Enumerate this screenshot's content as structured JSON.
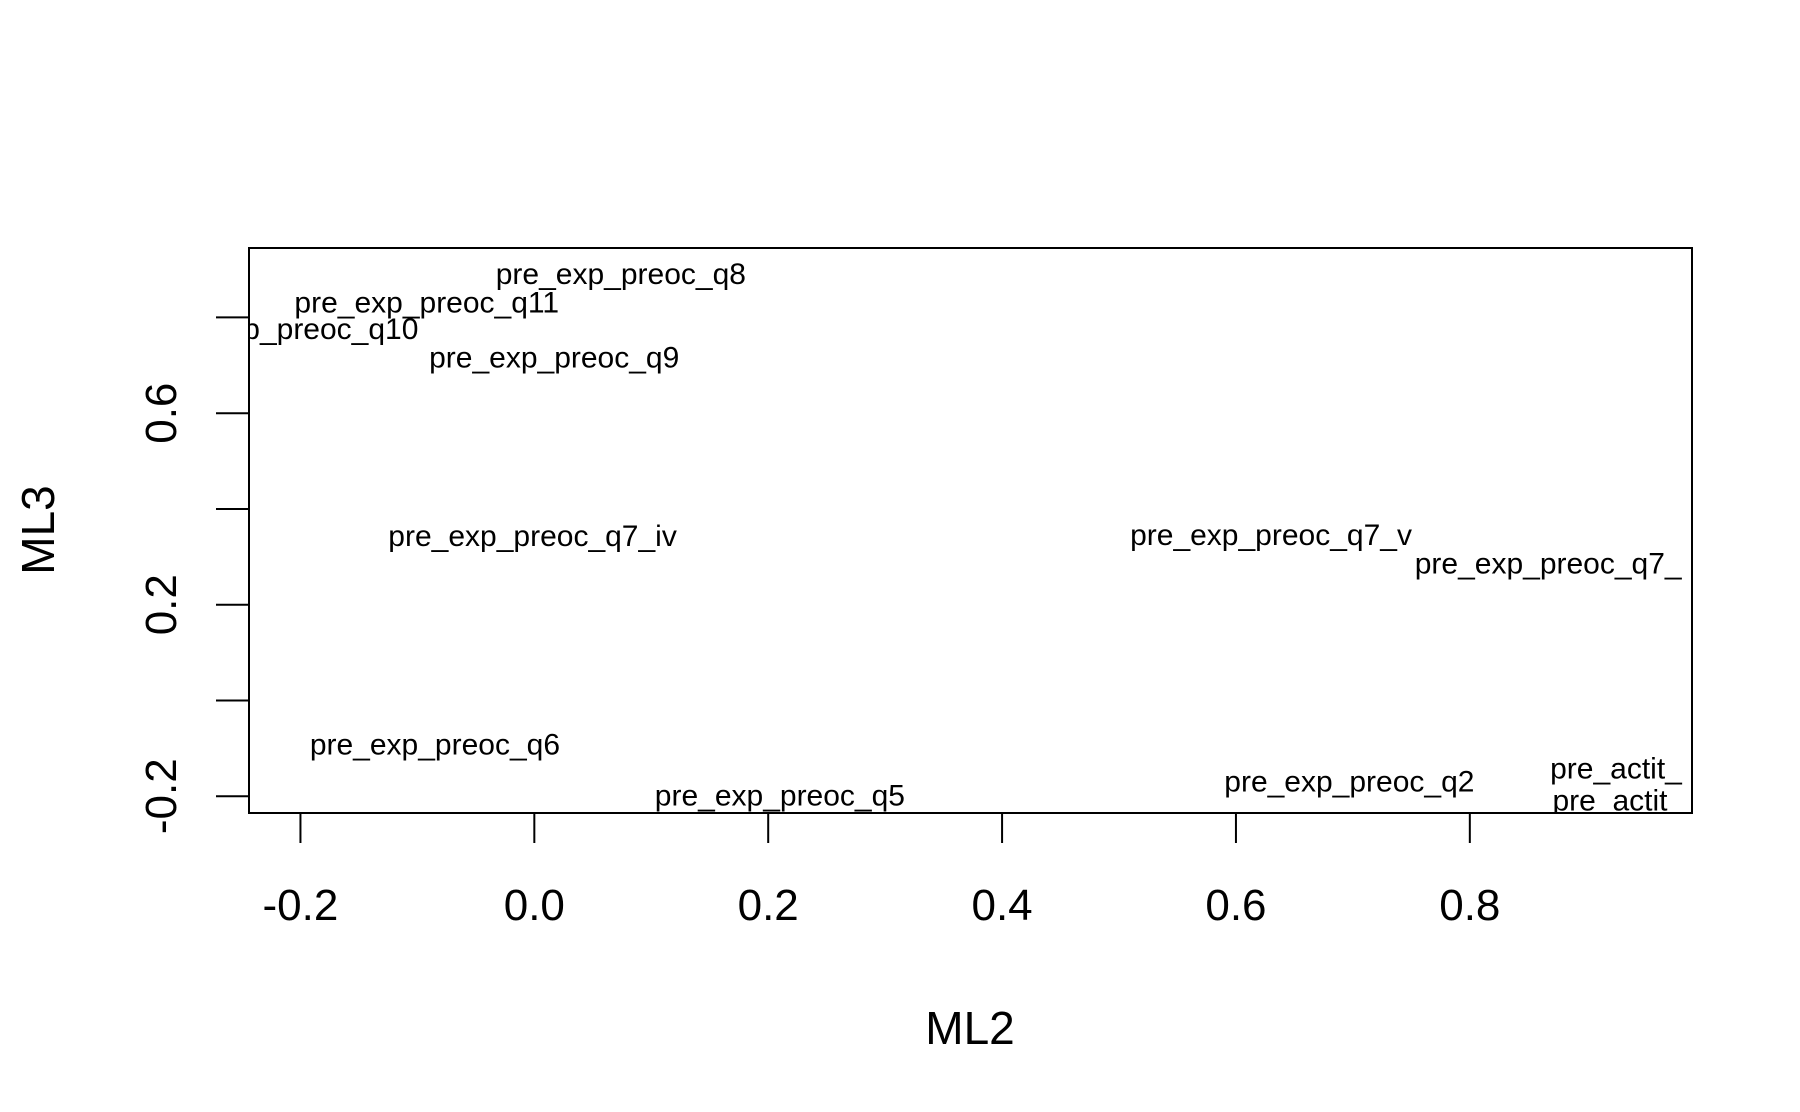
{
  "chart_data": {
    "type": "scatter",
    "title": "",
    "xlabel": "ML2",
    "ylabel": "ML3",
    "xlim": [
      -0.244,
      0.99
    ],
    "ylim": [
      -0.235,
      0.945
    ],
    "xticks": [
      -0.2,
      0.0,
      0.2,
      0.4,
      0.6,
      0.8
    ],
    "xtick_labels": [
      "-0.2",
      "0.0",
      "0.2",
      "0.4",
      "0.6",
      "0.8"
    ],
    "yticks": [
      -0.2,
      0.0,
      0.2,
      0.4,
      0.6,
      0.8
    ],
    "ytick_labels": [
      "-0.2",
      "",
      "0.2",
      "",
      "0.6",
      ""
    ],
    "grid": false,
    "points": [
      {
        "label": "pre_exp_preoc_q8",
        "x": 0.074,
        "y": 0.89
      },
      {
        "label": "pre_exp_preoc_q11",
        "x": -0.092,
        "y": 0.83
      },
      {
        "label": "p_preoc_q10",
        "x": -0.174,
        "y": 0.775
      },
      {
        "label": "pre_exp_preoc_q9",
        "x": 0.017,
        "y": 0.715
      },
      {
        "label": "pre_exp_preoc_q7_iv",
        "x": -0.0015,
        "y": 0.342
      },
      {
        "label": "pre_exp_preoc_q7_v",
        "x": 0.63,
        "y": 0.345
      },
      {
        "label": "pre_exp_preoc_q7_",
        "x": 0.867,
        "y": 0.285
      },
      {
        "label": "pre_exp_preoc_q6",
        "x": -0.085,
        "y": -0.093
      },
      {
        "label": "pre_exp_preoc_q5",
        "x": 0.21,
        "y": -0.2
      },
      {
        "label": "pre_exp_preoc_q2",
        "x": 0.697,
        "y": -0.17
      },
      {
        "label": "pre_actit_",
        "x": 0.925,
        "y": -0.143
      },
      {
        "label": "pre_actit_",
        "x": 0.927,
        "y": -0.21
      }
    ]
  }
}
